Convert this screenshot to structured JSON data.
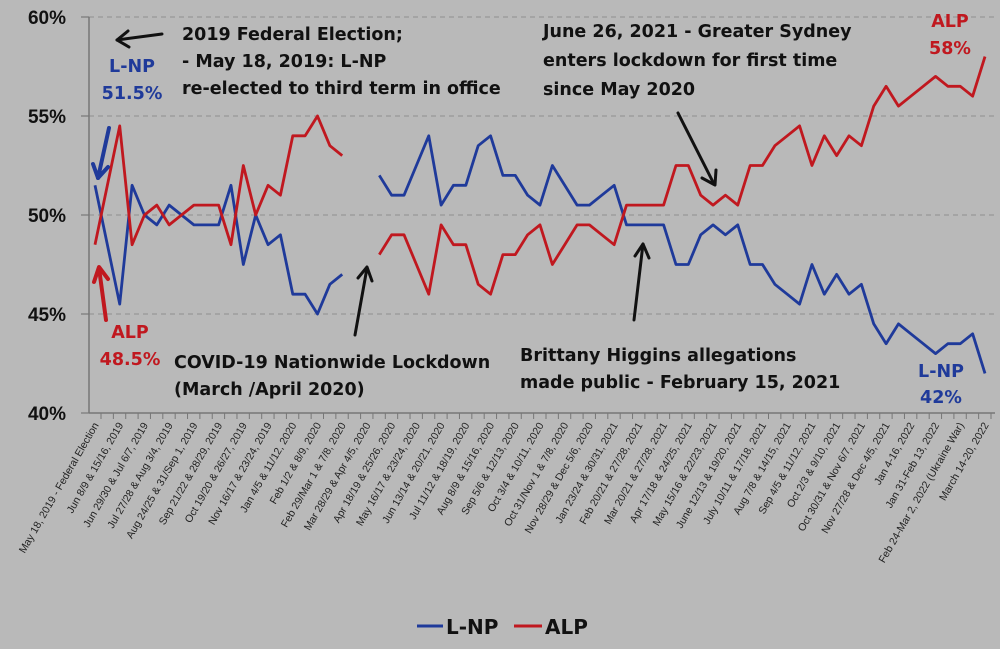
{
  "chart_data": {
    "type": "line",
    "title": "",
    "xlabel": "",
    "ylabel": "",
    "ylim": [
      40,
      60
    ],
    "y_ticks": [
      "40%",
      "45%",
      "50%",
      "55%",
      "60%"
    ],
    "grid": true,
    "legend_position": "bottom",
    "x_tick_labels": [
      "May 18, 2019 - Federal Election",
      "Jun 8/9 & 15/16, 2019",
      "Jun 29/30 & Jul 6/7, 2019",
      "Jul 27/28 & Aug 3/4, 2019",
      "Aug 24/25 & 31/Sep 1, 2019",
      "Sep 21/22 & 28/29, 2019",
      "Oct 19/20 & 26/27, 2019",
      "Nov 16/17 & 23/24, 2019",
      "Jan 4/5 & 11/12, 2020",
      "Feb 1/2 & 8/9, 2020",
      "Feb 29/Mar 1 & 7/8, 2020",
      "Mar 28/29 & Apr 4/5, 2020",
      "Apr 18/19 & 25/26, 2020",
      "May 16/17 & 23/24, 2020",
      "Jun 13/14 & 20/21, 2020",
      "Jul 11/12 & 18/19, 2020",
      "Aug 8/9 & 15/16, 2020",
      "Sep 5/6 & 12/13, 2020",
      "Oct 3/4 & 10/11, 2020",
      "Oct 31/Nov 1 & 7/8, 2020",
      "Nov 28/29 & Dec 5/6, 2020",
      "Jan 23/24 & 30/31, 2021",
      "Feb 20/21 & 27/28, 2021",
      "Mar 20/21 & 27/28, 2021",
      "Apr 17/18 & 24/25, 2021",
      "May 15/16 & 22/23, 2021",
      "June 12/13 & 19/20, 2021",
      "July 10/11 & 17/18, 2021",
      "Aug 7/8 & 14/15, 2021",
      "Sep 4/5 & 11/12, 2021",
      "Oct 2/3 & 9/10, 2021",
      "Oct 30/31 & Nov 6/7, 2021",
      "Nov 27/28 & Dec 4/5, 2021",
      "Jan 4-16, 2022",
      "Jan 31-Feb 13, 2022",
      "Feb 24-Mar 2, 2022 (Ukraine War)",
      "March 14-20, 2022"
    ],
    "series": [
      {
        "name": "L-NP",
        "color": "#1f3a9a",
        "values": [
          51.5,
          48.5,
          45.5,
          51.5,
          50,
          49.5,
          50.5,
          50,
          49.5,
          49.5,
          49.5,
          51.5,
          47.5,
          50,
          48.5,
          49,
          46,
          46,
          45,
          46.5,
          47,
          null,
          null,
          52,
          51,
          51,
          52.5,
          54,
          50.5,
          51.5,
          51.5,
          53.5,
          54,
          52,
          52,
          51,
          50.5,
          52.5,
          51.5,
          50.5,
          50.5,
          51,
          51.5,
          49.5,
          49.5,
          49.5,
          49.5,
          47.5,
          47.5,
          49,
          49.5,
          49,
          49.5,
          47.5,
          47.5,
          46.5,
          46,
          45.5,
          47.5,
          46,
          47,
          46,
          46.5,
          44.5,
          43.5,
          44.5,
          44,
          43.5,
          43,
          43.5,
          43.5,
          44,
          42
        ]
      },
      {
        "name": "ALP",
        "color": "#c0181f",
        "values": [
          48.5,
          51.5,
          54.5,
          48.5,
          50,
          50.5,
          49.5,
          50,
          50.5,
          50.5,
          50.5,
          48.5,
          52.5,
          50,
          51.5,
          51,
          54,
          54,
          55,
          53.5,
          53,
          null,
          null,
          48,
          49,
          49,
          47.5,
          46,
          49.5,
          48.5,
          48.5,
          46.5,
          46,
          48,
          48,
          49,
          49.5,
          47.5,
          48.5,
          49.5,
          49.5,
          49,
          48.5,
          50.5,
          50.5,
          50.5,
          50.5,
          52.5,
          52.5,
          51,
          50.5,
          51,
          50.5,
          52.5,
          52.5,
          53.5,
          54,
          54.5,
          52.5,
          54,
          53,
          54,
          53.5,
          55.5,
          56.5,
          55.5,
          56,
          56.5,
          57,
          56.5,
          56.5,
          56,
          58
        ]
      }
    ],
    "annotations": {
      "election": [
        "2019 Federal Election;",
        "- May 18, 2019: L-NP",
        "re-elected to third term in office"
      ],
      "lnp_start": [
        "L-NP",
        "51.5%"
      ],
      "alp_start": [
        "ALP",
        "48.5%"
      ],
      "covid": [
        "COVID-19 Nationwide Lockdown",
        "(March /April 2020)"
      ],
      "higgins": [
        "Brittany Higgins allegations",
        "made public - February 15, 2021"
      ],
      "sydney": [
        "June 26, 2021 - Greater Sydney",
        "enters lockdown for first time",
        "since May 2020"
      ],
      "alp_end": [
        "ALP",
        "58%"
      ],
      "lnp_end": [
        "L-NP",
        "42%"
      ]
    },
    "legend": [
      "L-NP",
      "ALP"
    ]
  }
}
